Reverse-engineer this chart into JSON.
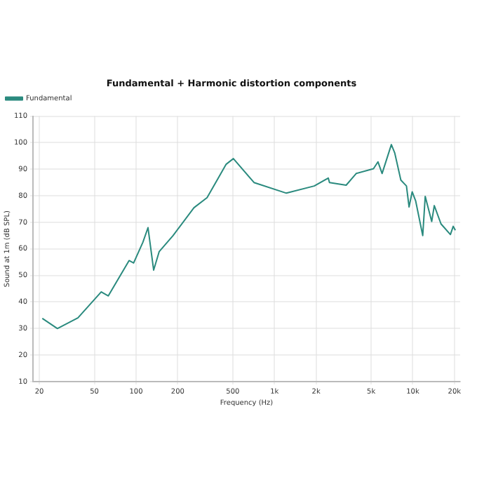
{
  "chart_data": {
    "type": "line",
    "title": "Fundamental + Harmonic distortion components",
    "xlabel": "Frequency (Hz)",
    "ylabel": "Sound at 1m (dB SPL)",
    "log": "x",
    "grid": true,
    "legend": "top left",
    "marker": "none",
    "line_style": "solid",
    "xlim": [
      18,
      22000
    ],
    "xticks": [
      20,
      50,
      100,
      200,
      500,
      {
        "value": 1000,
        "label": "1k"
      },
      {
        "value": 2000,
        "label": "2k"
      },
      {
        "value": 5000,
        "label": "5k"
      },
      {
        "value": 10000,
        "label": "10k"
      },
      {
        "value": 20000,
        "label": "20k"
      }
    ],
    "ylim": [
      10,
      110
    ],
    "yticks": [
      10,
      20,
      30,
      40,
      50,
      60,
      70,
      80,
      90,
      100,
      110
    ],
    "series": [
      {
        "name": "Fundamental",
        "color": "#2a8a7e",
        "x": [
          21,
          27,
          38,
          56,
          63,
          89,
          96,
          112,
          122,
          134,
          147,
          185,
          262,
          326,
          448,
          505,
          712,
          1220,
          1940,
          2450,
          2500,
          3300,
          3900,
          5200,
          5600,
          6000,
          7000,
          7400,
          8200,
          9000,
          9400,
          9900,
          10500,
          11800,
          12300,
          13700,
          14300,
          16000,
          18700,
          19600,
          20300
        ],
        "values": [
          33.8,
          30,
          34,
          43.8,
          42.3,
          55.6,
          54.7,
          62.5,
          68,
          52,
          59,
          65,
          75.5,
          79.3,
          91.9,
          94,
          85,
          81,
          83.7,
          86.7,
          85,
          84,
          88.4,
          90.2,
          92.8,
          88.4,
          99.3,
          96.2,
          85.9,
          83.7,
          75.8,
          81.5,
          78,
          65,
          79.8,
          70.3,
          76.3,
          69.4,
          65.4,
          68.5,
          67
        ]
      }
    ]
  }
}
